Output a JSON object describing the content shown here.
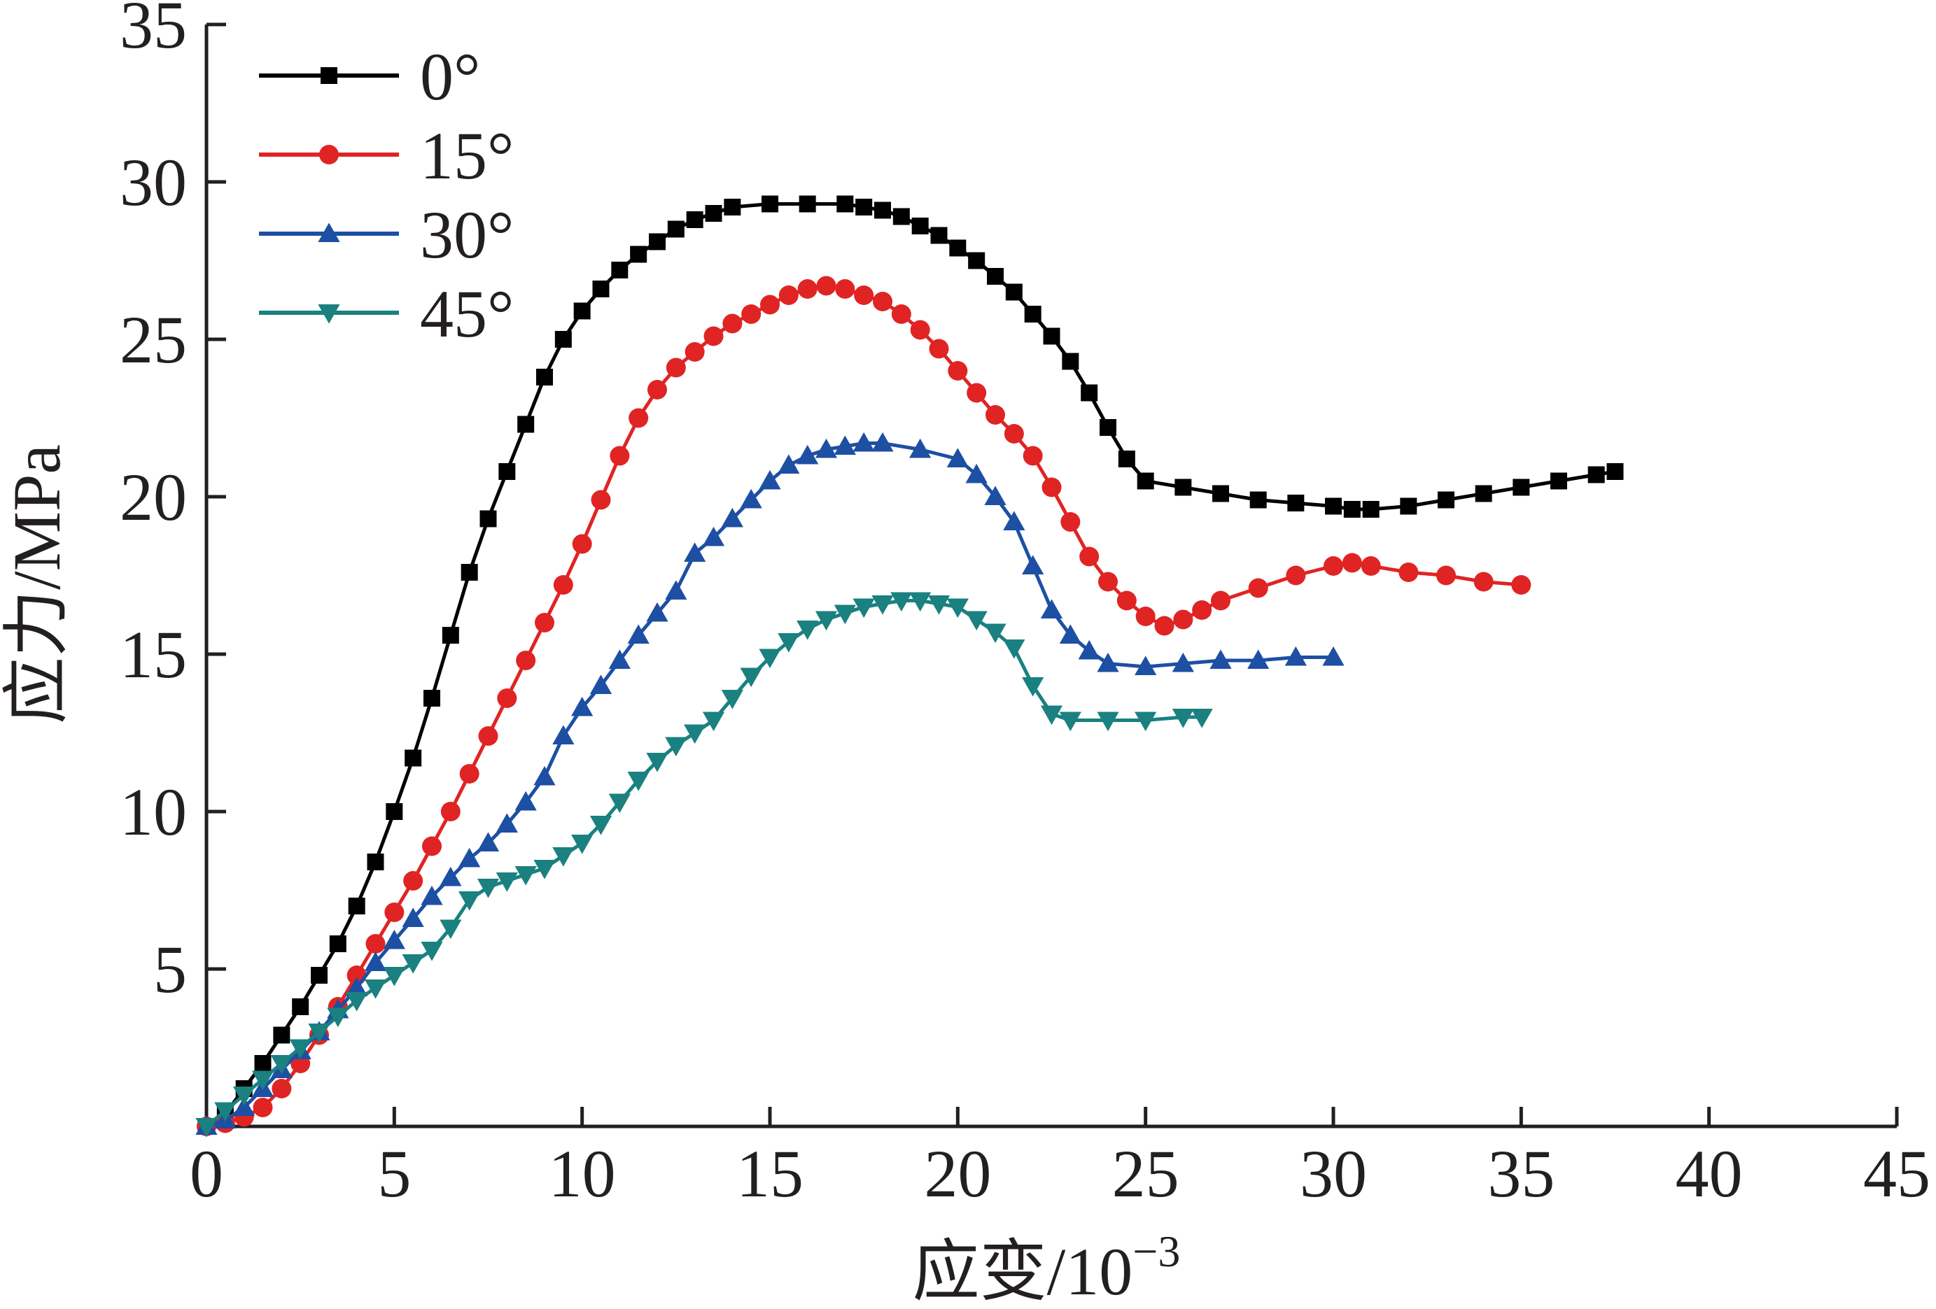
{
  "chart_data": {
    "type": "line",
    "xlabel_main": "应变/10",
    "xlabel_sup": "−3",
    "ylabel": "应力/MPa",
    "xlim": [
      0,
      45
    ],
    "ylim": [
      0,
      35
    ],
    "xticks": [
      0,
      5,
      10,
      15,
      20,
      25,
      30,
      35,
      40,
      45
    ],
    "yticks": [
      5,
      10,
      15,
      20,
      25,
      30,
      35
    ],
    "x_tick_labels": [
      "0",
      "5",
      "10",
      "15",
      "20",
      "25",
      "30",
      "35",
      "40",
      "45"
    ],
    "y_tick_labels": [
      "5",
      "10",
      "15",
      "20",
      "25",
      "30",
      "35"
    ],
    "grid": false,
    "legend_position": "top-left",
    "series": [
      {
        "name": "0°",
        "color": "#000000",
        "marker": "square",
        "points": [
          [
            0,
            0
          ],
          [
            0.5,
            0.4
          ],
          [
            1,
            1.2
          ],
          [
            1.5,
            2
          ],
          [
            2,
            2.9
          ],
          [
            2.5,
            3.8
          ],
          [
            3,
            4.8
          ],
          [
            3.5,
            5.8
          ],
          [
            4,
            7
          ],
          [
            4.5,
            8.4
          ],
          [
            5,
            10
          ],
          [
            5.5,
            11.7
          ],
          [
            6,
            13.6
          ],
          [
            6.5,
            15.6
          ],
          [
            7,
            17.6
          ],
          [
            7.5,
            19.3
          ],
          [
            8,
            20.8
          ],
          [
            8.5,
            22.3
          ],
          [
            9,
            23.8
          ],
          [
            9.5,
            25
          ],
          [
            10,
            25.9
          ],
          [
            10.5,
            26.6
          ],
          [
            11,
            27.2
          ],
          [
            11.5,
            27.7
          ],
          [
            12,
            28.1
          ],
          [
            12.5,
            28.5
          ],
          [
            13,
            28.8
          ],
          [
            13.5,
            29.0
          ],
          [
            14,
            29.2
          ],
          [
            15,
            29.3
          ],
          [
            16,
            29.3
          ],
          [
            17,
            29.3
          ],
          [
            17.5,
            29.2
          ],
          [
            18,
            29.1
          ],
          [
            18.5,
            28.9
          ],
          [
            19,
            28.6
          ],
          [
            19.5,
            28.3
          ],
          [
            20,
            27.9
          ],
          [
            20.5,
            27.5
          ],
          [
            21,
            27.0
          ],
          [
            21.5,
            26.5
          ],
          [
            22,
            25.8
          ],
          [
            22.5,
            25.1
          ],
          [
            23,
            24.3
          ],
          [
            23.5,
            23.3
          ],
          [
            24,
            22.2
          ],
          [
            24.5,
            21.2
          ],
          [
            25,
            20.5
          ],
          [
            26,
            20.3
          ],
          [
            27,
            20.1
          ],
          [
            28,
            19.9
          ],
          [
            29,
            19.8
          ],
          [
            30,
            19.7
          ],
          [
            30.5,
            19.6
          ],
          [
            31,
            19.6
          ],
          [
            32,
            19.7
          ],
          [
            33,
            19.9
          ],
          [
            34,
            20.1
          ],
          [
            35,
            20.3
          ],
          [
            36,
            20.5
          ],
          [
            37,
            20.7
          ],
          [
            37.5,
            20.8
          ]
        ]
      },
      {
        "name": "15°",
        "color": "#e02424",
        "marker": "circle",
        "points": [
          [
            0,
            0
          ],
          [
            0.5,
            0.1
          ],
          [
            1,
            0.3
          ],
          [
            1.5,
            0.6
          ],
          [
            2,
            1.2
          ],
          [
            2.5,
            2
          ],
          [
            3,
            2.9
          ],
          [
            3.5,
            3.8
          ],
          [
            4,
            4.8
          ],
          [
            4.5,
            5.8
          ],
          [
            5,
            6.8
          ],
          [
            5.5,
            7.8
          ],
          [
            6,
            8.9
          ],
          [
            6.5,
            10.0
          ],
          [
            7,
            11.2
          ],
          [
            7.5,
            12.4
          ],
          [
            8,
            13.6
          ],
          [
            8.5,
            14.8
          ],
          [
            9,
            16.0
          ],
          [
            9.5,
            17.2
          ],
          [
            10,
            18.5
          ],
          [
            10.5,
            19.9
          ],
          [
            11,
            21.3
          ],
          [
            11.5,
            22.5
          ],
          [
            12,
            23.4
          ],
          [
            12.5,
            24.1
          ],
          [
            13,
            24.6
          ],
          [
            13.5,
            25.1
          ],
          [
            14,
            25.5
          ],
          [
            14.5,
            25.8
          ],
          [
            15,
            26.1
          ],
          [
            15.5,
            26.4
          ],
          [
            16,
            26.6
          ],
          [
            16.5,
            26.7
          ],
          [
            17,
            26.6
          ],
          [
            17.5,
            26.4
          ],
          [
            18,
            26.2
          ],
          [
            18.5,
            25.8
          ],
          [
            19,
            25.3
          ],
          [
            19.5,
            24.7
          ],
          [
            20,
            24.0
          ],
          [
            20.5,
            23.3
          ],
          [
            21,
            22.6
          ],
          [
            21.5,
            22.0
          ],
          [
            22,
            21.3
          ],
          [
            22.5,
            20.3
          ],
          [
            23,
            19.2
          ],
          [
            23.5,
            18.1
          ],
          [
            24,
            17.3
          ],
          [
            24.5,
            16.7
          ],
          [
            25,
            16.2
          ],
          [
            25.5,
            15.9
          ],
          [
            26,
            16.1
          ],
          [
            26.5,
            16.4
          ],
          [
            27,
            16.7
          ],
          [
            28,
            17.1
          ],
          [
            29,
            17.5
          ],
          [
            30,
            17.8
          ],
          [
            30.5,
            17.9
          ],
          [
            31,
            17.8
          ],
          [
            32,
            17.6
          ],
          [
            33,
            17.5
          ],
          [
            34,
            17.3
          ],
          [
            35,
            17.2
          ]
        ]
      },
      {
        "name": "30°",
        "color": "#1d4fa3",
        "marker": "triangle-up",
        "points": [
          [
            0,
            0
          ],
          [
            0.5,
            0.2
          ],
          [
            1,
            0.6
          ],
          [
            1.5,
            1.2
          ],
          [
            2,
            1.8
          ],
          [
            2.5,
            2.4
          ],
          [
            3,
            3.0
          ],
          [
            3.5,
            3.7
          ],
          [
            4,
            4.4
          ],
          [
            4.5,
            5.2
          ],
          [
            5,
            5.9
          ],
          [
            5.5,
            6.6
          ],
          [
            6,
            7.3
          ],
          [
            6.5,
            7.9
          ],
          [
            7,
            8.5
          ],
          [
            7.5,
            9.0
          ],
          [
            8,
            9.6
          ],
          [
            8.5,
            10.3
          ],
          [
            9,
            11.1
          ],
          [
            9.5,
            12.4
          ],
          [
            10,
            13.3
          ],
          [
            10.5,
            14.0
          ],
          [
            11,
            14.8
          ],
          [
            11.5,
            15.6
          ],
          [
            12,
            16.3
          ],
          [
            12.5,
            17.0
          ],
          [
            13,
            18.2
          ],
          [
            13.5,
            18.7
          ],
          [
            14,
            19.3
          ],
          [
            14.5,
            19.9
          ],
          [
            15,
            20.5
          ],
          [
            15.5,
            21.0
          ],
          [
            16,
            21.3
          ],
          [
            16.5,
            21.5
          ],
          [
            17,
            21.6
          ],
          [
            17.5,
            21.7
          ],
          [
            18,
            21.7
          ],
          [
            19,
            21.5
          ],
          [
            20,
            21.2
          ],
          [
            20.5,
            20.7
          ],
          [
            21,
            20.0
          ],
          [
            21.5,
            19.2
          ],
          [
            22,
            17.8
          ],
          [
            22.5,
            16.4
          ],
          [
            23,
            15.6
          ],
          [
            23.5,
            15.1
          ],
          [
            24,
            14.7
          ],
          [
            25,
            14.6
          ],
          [
            26,
            14.7
          ],
          [
            27,
            14.8
          ],
          [
            28,
            14.8
          ],
          [
            29,
            14.9
          ],
          [
            30,
            14.9
          ]
        ]
      },
      {
        "name": "45°",
        "color": "#1a8080",
        "marker": "triangle-down",
        "points": [
          [
            0,
            0
          ],
          [
            0.5,
            0.5
          ],
          [
            1,
            1.0
          ],
          [
            1.5,
            1.5
          ],
          [
            2,
            2.0
          ],
          [
            2.5,
            2.5
          ],
          [
            3,
            3.0
          ],
          [
            3.5,
            3.5
          ],
          [
            4,
            4.0
          ],
          [
            4.5,
            4.4
          ],
          [
            5,
            4.8
          ],
          [
            5.5,
            5.2
          ],
          [
            6,
            5.6
          ],
          [
            6.5,
            6.3
          ],
          [
            7,
            7.2
          ],
          [
            7.5,
            7.6
          ],
          [
            8,
            7.8
          ],
          [
            8.5,
            8.0
          ],
          [
            9,
            8.2
          ],
          [
            9.5,
            8.6
          ],
          [
            10,
            9.0
          ],
          [
            10.5,
            9.6
          ],
          [
            11,
            10.3
          ],
          [
            11.5,
            11.0
          ],
          [
            12,
            11.6
          ],
          [
            12.5,
            12.1
          ],
          [
            13,
            12.5
          ],
          [
            13.5,
            12.9
          ],
          [
            14,
            13.6
          ],
          [
            14.5,
            14.3
          ],
          [
            15,
            14.9
          ],
          [
            15.5,
            15.4
          ],
          [
            16,
            15.8
          ],
          [
            16.5,
            16.1
          ],
          [
            17,
            16.3
          ],
          [
            17.5,
            16.5
          ],
          [
            18,
            16.6
          ],
          [
            18.5,
            16.7
          ],
          [
            19,
            16.7
          ],
          [
            19.5,
            16.6
          ],
          [
            20,
            16.5
          ],
          [
            20.5,
            16.1
          ],
          [
            21,
            15.7
          ],
          [
            21.5,
            15.2
          ],
          [
            22,
            14.0
          ],
          [
            22.5,
            13.1
          ],
          [
            23,
            12.9
          ],
          [
            24,
            12.9
          ],
          [
            25,
            12.9
          ],
          [
            26,
            13.0
          ],
          [
            26.5,
            13.0
          ]
        ]
      }
    ]
  }
}
